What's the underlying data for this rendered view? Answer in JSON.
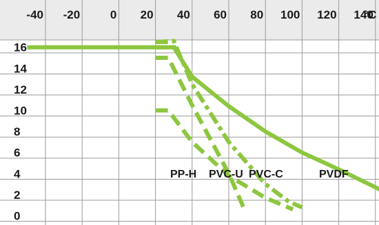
{
  "chart_data": {
    "type": "line",
    "x_unit": "°C",
    "x_ticks": [
      -40,
      -20,
      0,
      20,
      40,
      60,
      80,
      100,
      120,
      140
    ],
    "y_ticks": [
      16,
      14,
      12,
      10,
      8,
      6,
      4,
      2,
      0
    ],
    "xlim": [
      -50,
      150
    ],
    "ylim": [
      0,
      17
    ],
    "grid": true,
    "line_color": "#8dc63f",
    "series": [
      {
        "name": "PVDF",
        "style": "solid",
        "points": [
          [
            -50,
            16
          ],
          [
            20,
            16
          ],
          [
            30,
            16
          ],
          [
            40,
            13.2
          ],
          [
            60,
            10.4
          ],
          [
            80,
            8.0
          ],
          [
            100,
            6.0
          ],
          [
            120,
            4.4
          ],
          [
            140,
            2.7
          ],
          [
            150,
            1.8
          ]
        ]
      },
      {
        "name": "PP-H",
        "style": "dashed",
        "points": [
          [
            20,
            10
          ],
          [
            27,
            10
          ],
          [
            40,
            7.0
          ],
          [
            60,
            3.8
          ],
          [
            80,
            1.7
          ],
          [
            95,
            0.6
          ]
        ]
      },
      {
        "name": "PVC-U",
        "style": "dashed",
        "segments": [
          [
            [
              20,
              15
            ],
            [
              27,
              15
            ],
            [
              40,
              10.5
            ],
            [
              60,
              4.0
            ],
            [
              68,
              0.8
            ]
          ],
          [
            [
              20,
              16.5
            ],
            [
              27,
              16.5
            ]
          ]
        ]
      },
      {
        "name": "PVC-C",
        "style": "dashdot",
        "segments": [
          [
            [
              20,
              16.5
            ],
            [
              30,
              16.6
            ],
            [
              40,
              12.5
            ],
            [
              60,
              7.0
            ],
            [
              80,
              3.0
            ],
            [
              93,
              1.3
            ],
            [
              100,
              0.8
            ]
          ],
          [
            [
              20,
              16.0
            ],
            [
              32,
              16.0
            ]
          ]
        ]
      }
    ]
  }
}
